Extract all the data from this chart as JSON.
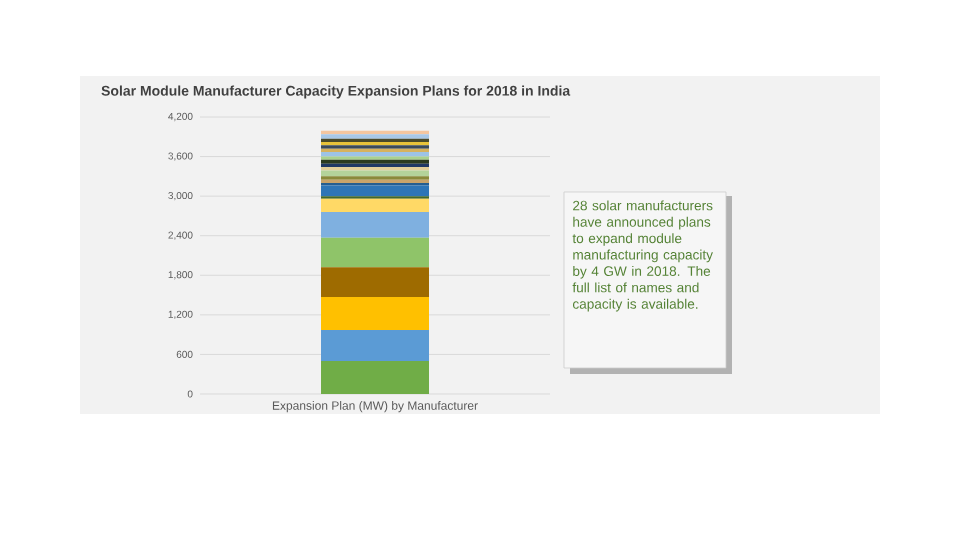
{
  "chart_data": {
    "type": "bar",
    "title": "Solar Module Manufacturer Capacity Expansion Plans for 2018 in India",
    "categories": [
      "Expansion Plan (MW) by Manufacturer"
    ],
    "stacked": true,
    "grid": "y",
    "ylim": [
      0,
      4200
    ],
    "yticks": [
      {
        "value": 0,
        "label": "0"
      },
      {
        "value": 600,
        "label": "600"
      },
      {
        "value": 1200,
        "label": "1,200"
      },
      {
        "value": 1800,
        "label": "1,800"
      },
      {
        "value": 2400,
        "label": "2,400"
      },
      {
        "value": 3000,
        "label": "3,000"
      },
      {
        "value": 3600,
        "label": "3,600"
      },
      {
        "value": 4200,
        "label": "4,200"
      }
    ],
    "annotations": [
      "28 solar manufacturers have announced plans to expand module manufacturing capacity by 4 GW in 2018. The full list of names and capacity is available."
    ],
    "series": [
      {
        "color": "#70ad47",
        "values": [
          500
        ]
      },
      {
        "color": "#5b9bd5",
        "values": [
          470
        ]
      },
      {
        "color": "#ffc000",
        "values": [
          500
        ]
      },
      {
        "color": "#9e6b00",
        "values": [
          450
        ]
      },
      {
        "color": "#8fc469",
        "values": [
          450
        ]
      },
      {
        "color": "#7fb0e0",
        "values": [
          390
        ]
      },
      {
        "color": "#ffd966",
        "values": [
          200
        ]
      },
      {
        "color": "#43682b",
        "values": [
          40
        ]
      },
      {
        "color": "#2e75b6",
        "values": [
          160
        ]
      },
      {
        "color": "#255e91",
        "values": [
          40
        ]
      },
      {
        "color": "#c9a46a",
        "values": [
          50
        ]
      },
      {
        "color": "#8a8a3a",
        "values": [
          50
        ]
      },
      {
        "color": "#b4d39a",
        "values": [
          90
        ]
      },
      {
        "color": "#e2cf9a",
        "values": [
          50
        ]
      },
      {
        "color": "#203864",
        "values": [
          50
        ]
      },
      {
        "color": "#2b3a1e",
        "values": [
          60
        ]
      },
      {
        "color": "#a9d18e",
        "values": [
          50
        ]
      },
      {
        "color": "#9dc3e6",
        "values": [
          70
        ]
      },
      {
        "color": "#d6b25e",
        "values": [
          50
        ]
      },
      {
        "color": "#3b4a5a",
        "values": [
          50
        ]
      },
      {
        "color": "#e8c33a",
        "values": [
          50
        ]
      },
      {
        "color": "#4a4a2a",
        "values": [
          50
        ]
      },
      {
        "color": "#a8c8e8",
        "values": [
          70
        ]
      },
      {
        "color": "#f4c6a0",
        "values": [
          50
        ]
      }
    ]
  }
}
